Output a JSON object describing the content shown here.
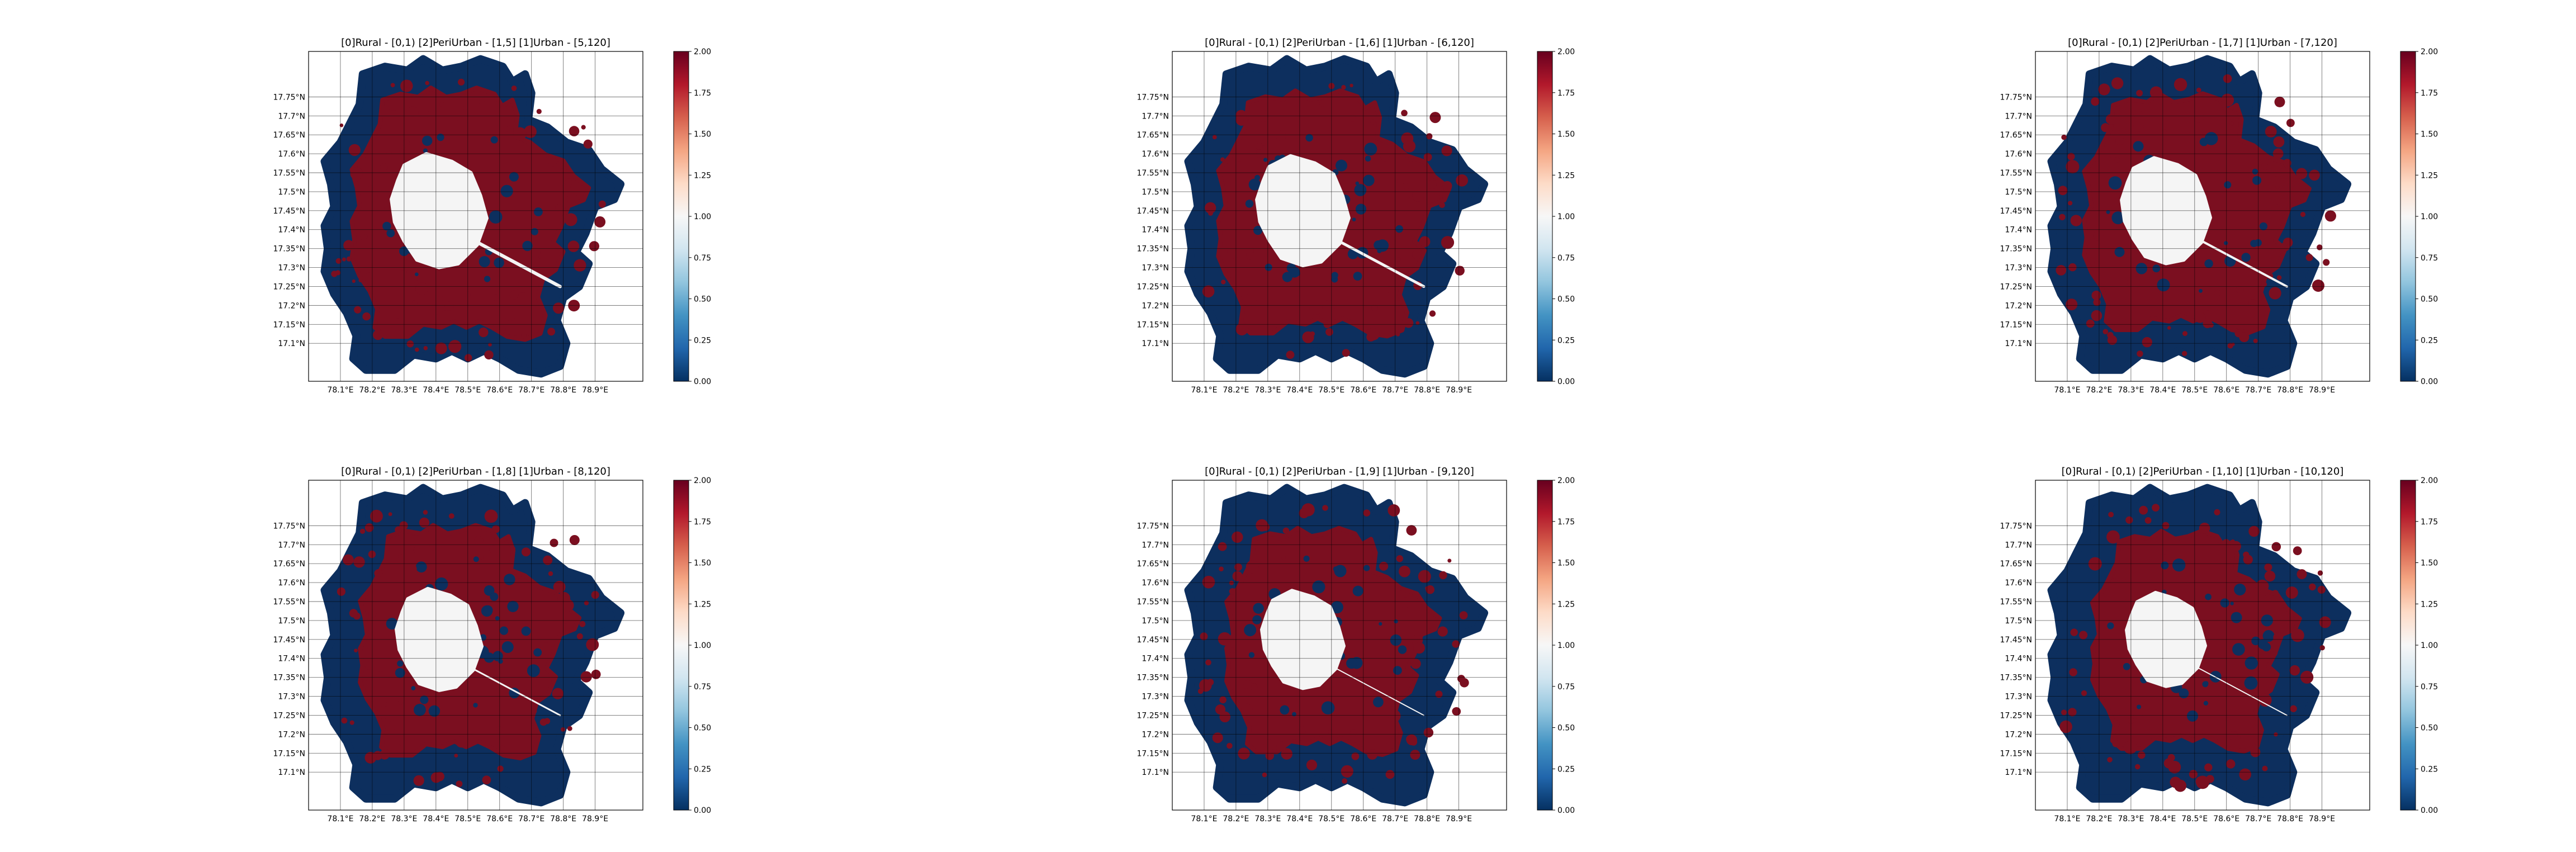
{
  "figure": {
    "palette": {
      "rural": "#0d2f5e",
      "urban": "#7b0f20",
      "periurban": "#f5f5f5",
      "colormap": [
        "#053061",
        "#2166ac",
        "#4393c3",
        "#92c5de",
        "#d1e5f0",
        "#f7f7f7",
        "#fddbc7",
        "#f4a582",
        "#d6604d",
        "#b2182b",
        "#67001f"
      ],
      "grid": "#000000"
    }
  },
  "chart_data": [
    {
      "type": "heatmap",
      "title": "[0]Rural - [0,1) [2]PeriUrban - [1,5] [1]Urban - [5,120]",
      "xticks": [
        "78.1°E",
        "78.2°E",
        "78.3°E",
        "78.4°E",
        "78.5°E",
        "78.6°E",
        "78.7°E",
        "78.8°E",
        "78.9°E"
      ],
      "yticks": [
        "17.75°N",
        "17.7°N",
        "17.65°N",
        "17.6°N",
        "17.55°N",
        "17.5°N",
        "17.45°N",
        "17.4°N",
        "17.35°N",
        "17.3°N",
        "17.25°N",
        "17.2°N",
        "17.15°N",
        "17.1°N"
      ],
      "colorbar": {
        "ticks": [
          "2.00",
          "1.75",
          "1.50",
          "1.25",
          "1.00",
          "0.75",
          "0.50",
          "0.25",
          "0.00"
        ],
        "vmin": 0,
        "vmax": 2
      },
      "categories": {
        "Rural": 0,
        "Urban": 1,
        "PeriUrban": 2
      },
      "grid": true
    },
    {
      "type": "heatmap",
      "title": "[0]Rural - [0,1) [2]PeriUrban - [1,6] [1]Urban - [6,120]",
      "xticks": [
        "78.1°E",
        "78.2°E",
        "78.3°E",
        "78.4°E",
        "78.5°E",
        "78.6°E",
        "78.7°E",
        "78.8°E",
        "78.9°E"
      ],
      "yticks": [
        "17.75°N",
        "17.7°N",
        "17.65°N",
        "17.6°N",
        "17.55°N",
        "17.5°N",
        "17.45°N",
        "17.4°N",
        "17.35°N",
        "17.3°N",
        "17.25°N",
        "17.2°N",
        "17.15°N",
        "17.1°N"
      ],
      "colorbar": {
        "ticks": [
          "2.00",
          "1.75",
          "1.50",
          "1.25",
          "1.00",
          "0.75",
          "0.50",
          "0.25",
          "0.00"
        ],
        "vmin": 0,
        "vmax": 2
      },
      "categories": {
        "Rural": 0,
        "Urban": 1,
        "PeriUrban": 2
      },
      "grid": true
    },
    {
      "type": "heatmap",
      "title": "[0]Rural - [0,1) [2]PeriUrban - [1,7] [1]Urban - [7,120]",
      "xticks": [
        "78.1°E",
        "78.2°E",
        "78.3°E",
        "78.4°E",
        "78.5°E",
        "78.6°E",
        "78.7°E",
        "78.8°E",
        "78.9°E"
      ],
      "yticks": [
        "17.75°N",
        "17.7°N",
        "17.65°N",
        "17.6°N",
        "17.55°N",
        "17.5°N",
        "17.45°N",
        "17.4°N",
        "17.35°N",
        "17.3°N",
        "17.25°N",
        "17.2°N",
        "17.15°N",
        "17.1°N"
      ],
      "colorbar": {
        "ticks": [
          "2.00",
          "1.75",
          "1.50",
          "1.25",
          "1.00",
          "0.75",
          "0.50",
          "0.25",
          "0.00"
        ],
        "vmin": 0,
        "vmax": 2
      },
      "categories": {
        "Rural": 0,
        "Urban": 1,
        "PeriUrban": 2
      },
      "grid": true
    },
    {
      "type": "heatmap",
      "title": "[0]Rural - [0,1) [2]PeriUrban - [1,8] [1]Urban - [8,120]",
      "xticks": [
        "78.1°E",
        "78.2°E",
        "78.3°E",
        "78.4°E",
        "78.5°E",
        "78.6°E",
        "78.7°E",
        "78.8°E",
        "78.9°E"
      ],
      "yticks": [
        "17.75°N",
        "17.7°N",
        "17.65°N",
        "17.6°N",
        "17.55°N",
        "17.5°N",
        "17.45°N",
        "17.4°N",
        "17.35°N",
        "17.3°N",
        "17.25°N",
        "17.2°N",
        "17.15°N",
        "17.1°N"
      ],
      "colorbar": {
        "ticks": [
          "2.00",
          "1.75",
          "1.50",
          "1.25",
          "1.00",
          "0.75",
          "0.50",
          "0.25",
          "0.00"
        ],
        "vmin": 0,
        "vmax": 2
      },
      "categories": {
        "Rural": 0,
        "Urban": 1,
        "PeriUrban": 2
      },
      "grid": true
    },
    {
      "type": "heatmap",
      "title": "[0]Rural - [0,1) [2]PeriUrban - [1,9] [1]Urban - [9,120]",
      "xticks": [
        "78.1°E",
        "78.2°E",
        "78.3°E",
        "78.4°E",
        "78.5°E",
        "78.6°E",
        "78.7°E",
        "78.8°E",
        "78.9°E"
      ],
      "yticks": [
        "17.75°N",
        "17.7°N",
        "17.65°N",
        "17.6°N",
        "17.55°N",
        "17.5°N",
        "17.45°N",
        "17.4°N",
        "17.35°N",
        "17.3°N",
        "17.25°N",
        "17.2°N",
        "17.15°N",
        "17.1°N"
      ],
      "colorbar": {
        "ticks": [
          "2.00",
          "1.75",
          "1.50",
          "1.25",
          "1.00",
          "0.75",
          "0.50",
          "0.25",
          "0.00"
        ],
        "vmin": 0,
        "vmax": 2
      },
      "categories": {
        "Rural": 0,
        "Urban": 1,
        "PeriUrban": 2
      },
      "grid": true
    },
    {
      "type": "heatmap",
      "title": "[0]Rural - [0,1) [2]PeriUrban - [1,10] [1]Urban - [10,120]",
      "xticks": [
        "78.1°E",
        "78.2°E",
        "78.3°E",
        "78.4°E",
        "78.5°E",
        "78.6°E",
        "78.7°E",
        "78.8°E",
        "78.9°E"
      ],
      "yticks": [
        "17.75°N",
        "17.7°N",
        "17.65°N",
        "17.6°N",
        "17.55°N",
        "17.5°N",
        "17.45°N",
        "17.4°N",
        "17.35°N",
        "17.3°N",
        "17.25°N",
        "17.2°N",
        "17.15°N",
        "17.1°N"
      ],
      "colorbar": {
        "ticks": [
          "2.00",
          "1.75",
          "1.50",
          "1.25",
          "1.00",
          "0.75",
          "0.50",
          "0.25",
          "0.00"
        ],
        "vmin": 0,
        "vmax": 2
      },
      "categories": {
        "Rural": 0,
        "Urban": 1,
        "PeriUrban": 2
      },
      "grid": true
    }
  ]
}
